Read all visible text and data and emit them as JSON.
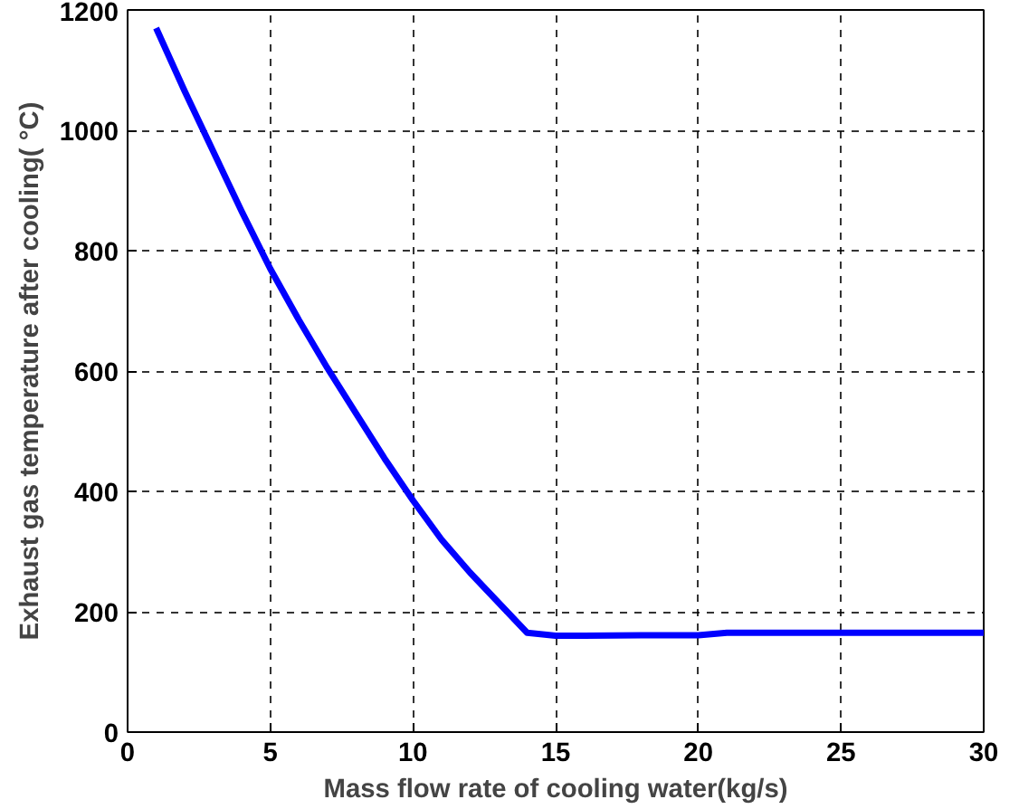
{
  "chart_data": {
    "type": "line",
    "xlabel": "Mass flow rate of cooling water(kg/s)",
    "ylabel": "Exhaust gas temperature after cooling( °C)",
    "x": [
      1,
      2,
      3,
      4,
      5,
      6,
      7,
      8,
      9,
      10,
      11,
      12,
      13,
      14,
      15,
      16,
      18,
      20,
      21,
      25,
      30
    ],
    "series": [
      {
        "color": "#0000ff",
        "values": [
          1170,
          1065,
          965,
          865,
          770,
          685,
          605,
          530,
          455,
          385,
          320,
          265,
          215,
          165,
          160,
          160,
          161,
          161,
          165,
          165,
          165
        ]
      }
    ],
    "xlim": [
      0,
      30
    ],
    "xticks": [
      0,
      5,
      10,
      15,
      20,
      25,
      30
    ],
    "ylim": [
      0,
      1200
    ],
    "yticks": [
      0,
      200,
      400,
      600,
      800,
      1000,
      1200
    ],
    "grid": true,
    "line_style": "solid",
    "marker": "none"
  }
}
